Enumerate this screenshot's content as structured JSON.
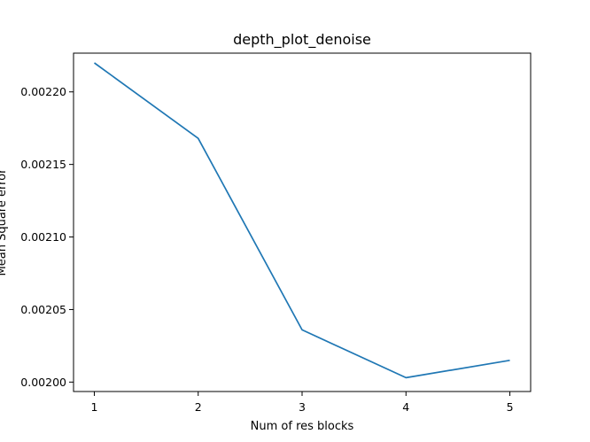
{
  "chart_data": {
    "type": "line",
    "title": "depth_plot_denoise",
    "xlabel": "Num of res blocks",
    "ylabel": "Mean Square error",
    "x": [
      1,
      2,
      3,
      4,
      5
    ],
    "series": [
      {
        "values": [
          0.00222,
          0.002168,
          0.002036,
          0.002003,
          0.002015
        ],
        "color": "#1f77b4"
      }
    ],
    "xticks": [
      "1",
      "2",
      "3",
      "4",
      "5"
    ],
    "yticks": [
      "0.00200",
      "0.00205",
      "0.00210",
      "0.00215",
      "0.00220"
    ],
    "xlim": [
      0.8,
      5.2
    ],
    "ylim": [
      0.0019935,
      0.0022267
    ],
    "grid": false,
    "legend": null
  }
}
